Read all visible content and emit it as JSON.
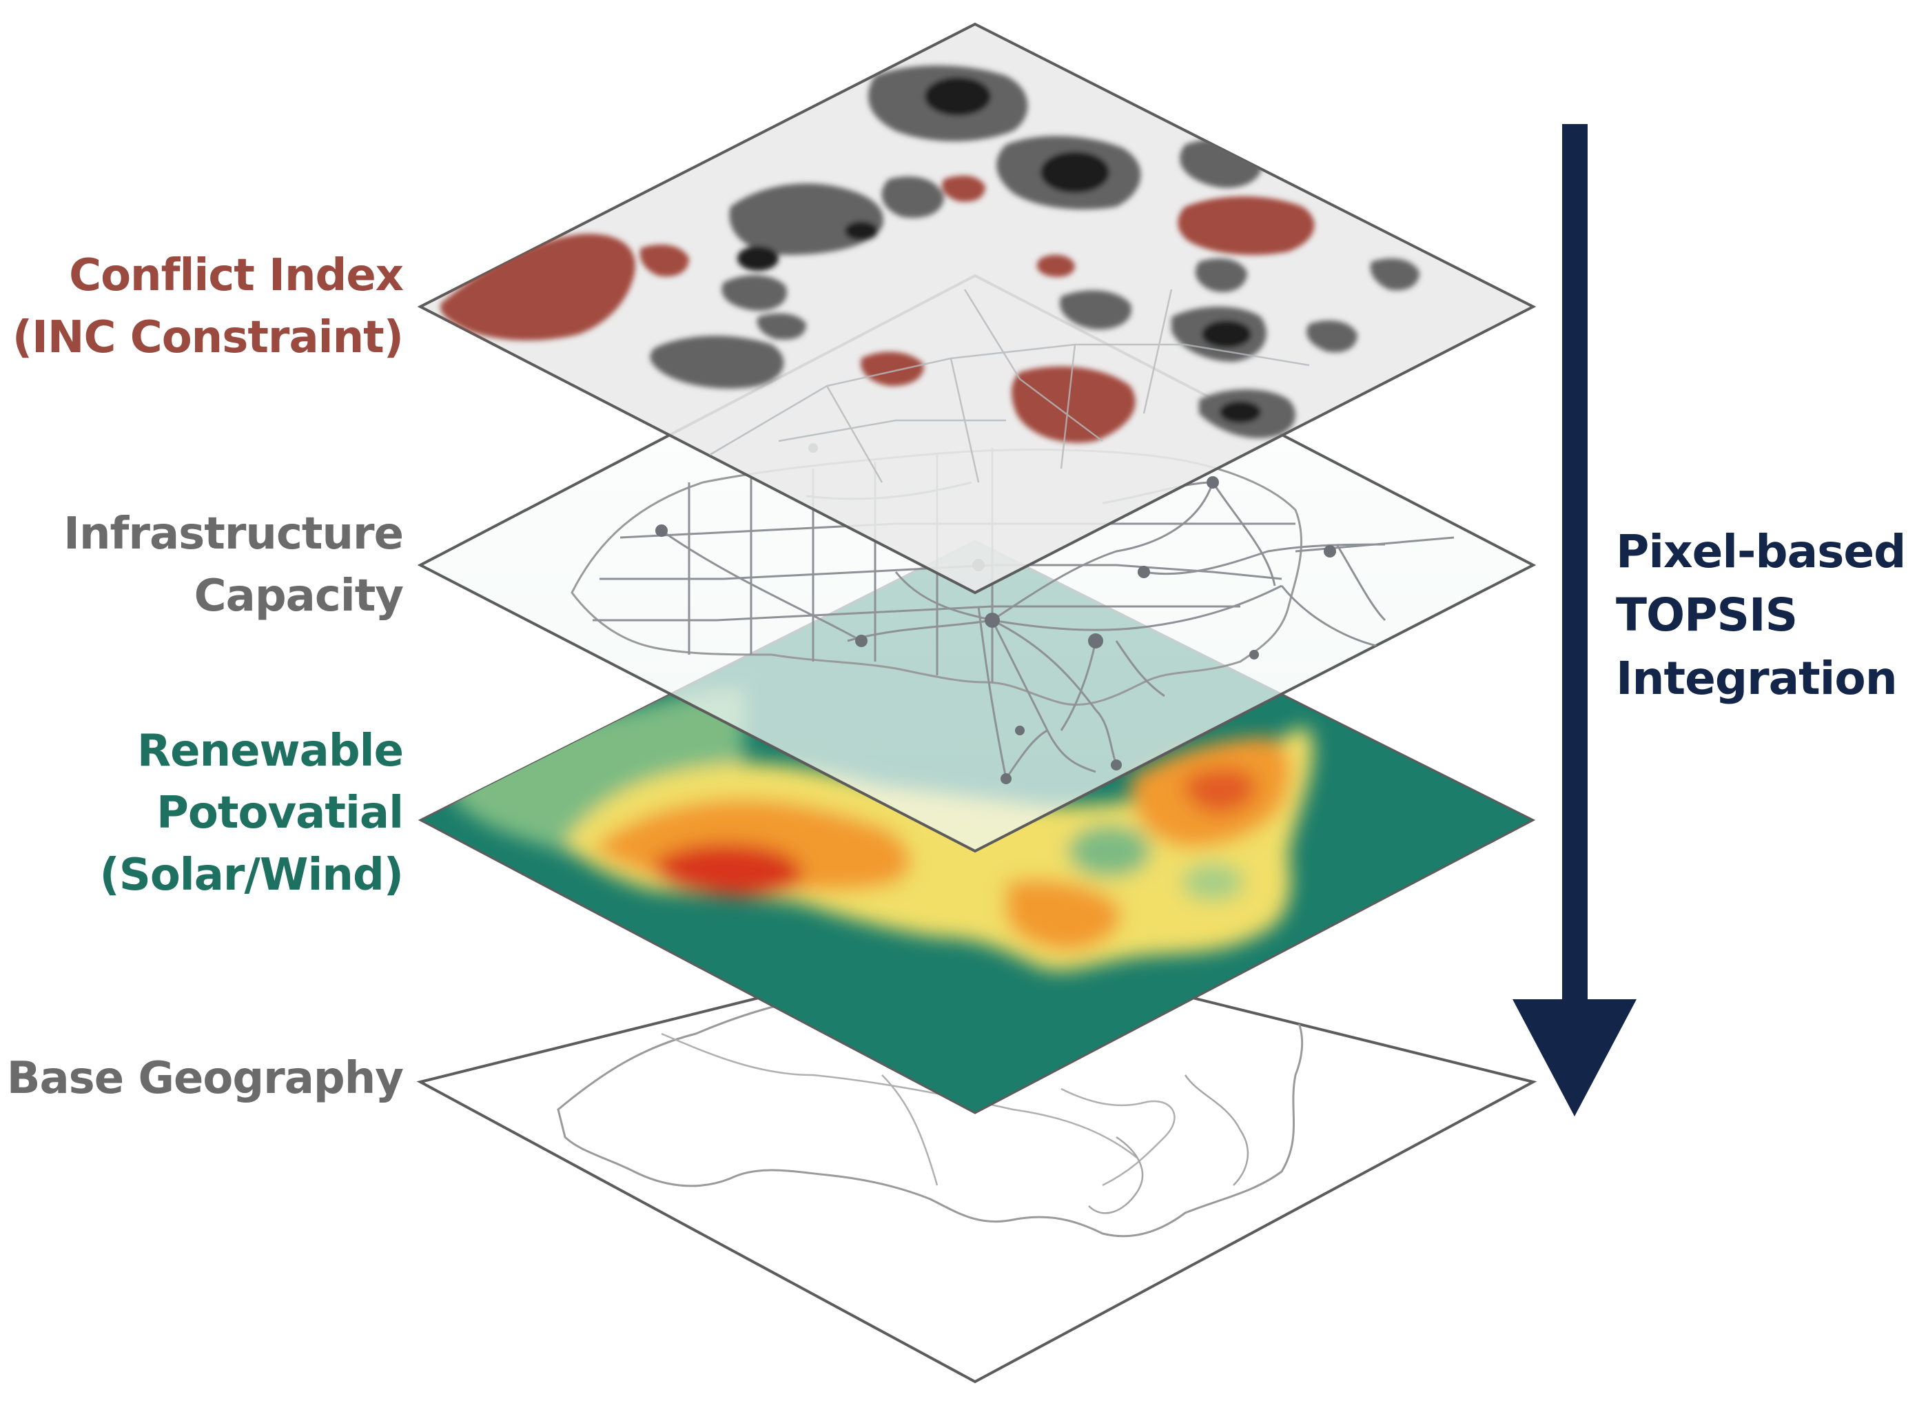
{
  "layers": [
    {
      "id": "conflict",
      "label_lines": [
        "Conflict Index",
        "(INC Constraint)"
      ]
    },
    {
      "id": "infrastructure",
      "label_lines": [
        "Infrastructure",
        "Capacity"
      ]
    },
    {
      "id": "renewable",
      "label_lines": [
        "Renewable",
        "Potovatial",
        "(Solar/Wind)"
      ]
    },
    {
      "id": "base",
      "label_lines": [
        "Base Geography"
      ]
    }
  ],
  "arrow_label_lines": [
    "Pixel-based",
    "TOPSIS",
    "Integration"
  ],
  "colors": {
    "conflict_label": "#9a4a3e",
    "infrastructure_label": "#6b6b6b",
    "renewable_label": "#1e7060",
    "base_label": "#6b6b6b",
    "arrow": "#14254a",
    "conflict_red": "#a24c40",
    "conflict_gray": "#636363",
    "conflict_dark": "#1c1c1c",
    "plane_fill": "#e9e9e9",
    "plane_border": "#5c5c5c",
    "map_teal": "#1b7d6a",
    "map_green": "#7dbb83",
    "map_yellow": "#f1df67",
    "map_orange": "#f29a2e",
    "map_red": "#d8351f",
    "road_line": "#8e9196",
    "outline_line": "#9a9a9a"
  }
}
